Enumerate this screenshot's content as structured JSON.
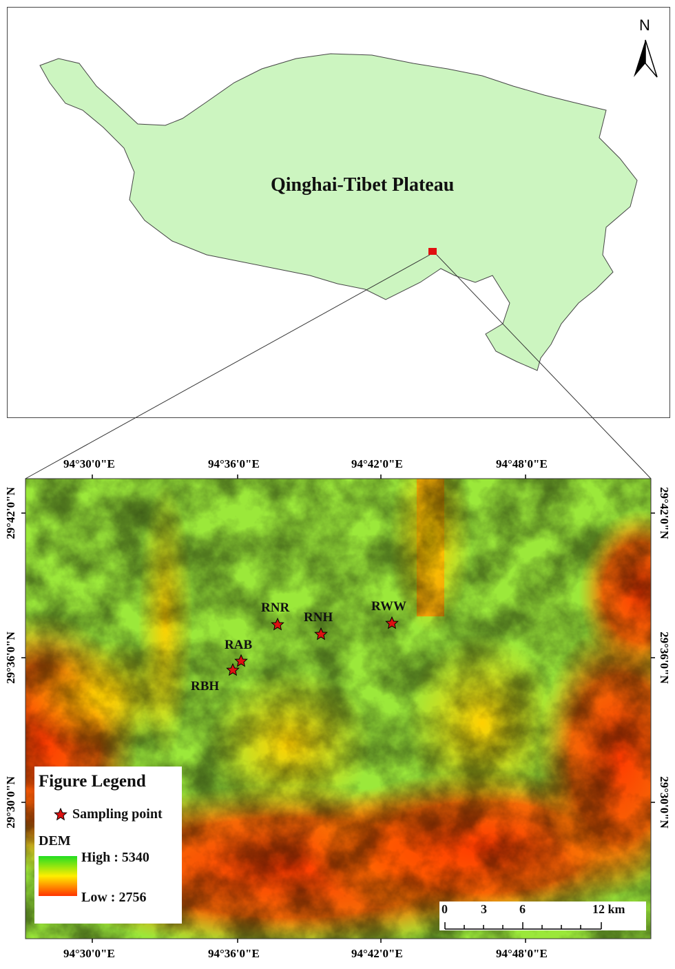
{
  "overview_map": {
    "region_label": "Qinghai-Tibet Plateau",
    "north_arrow_label": "N",
    "region_fill": "#ccf5c0",
    "study_area_marker_color": "#e01010"
  },
  "detail_map": {
    "longitude_labels": [
      "94°30'0\"E",
      "94°36'0\"E",
      "94°42'0\"E",
      "94°48'0\"E"
    ],
    "latitude_labels": [
      "29°42'0\"N",
      "29°36'0\"N",
      "29°30'0\"N"
    ],
    "sampling_points": [
      {
        "name": "RNR"
      },
      {
        "name": "RNH"
      },
      {
        "name": "RWW"
      },
      {
        "name": "RAB"
      },
      {
        "name": "RBH"
      }
    ],
    "legend": {
      "title": "Figure Legend",
      "sampling_label": "Sampling point",
      "dem_title": "DEM",
      "high_label": "High : 5340",
      "low_label": "Low : 2756",
      "dem_high_value": 5340,
      "dem_low_value": 2756,
      "high_color": "#22dd22",
      "mid_color": "#ffee00",
      "low_color": "#ff3300"
    },
    "scale_bar": {
      "labels": [
        "0",
        "3",
        "6",
        "12 km"
      ]
    },
    "star_color": "#dd1111"
  }
}
